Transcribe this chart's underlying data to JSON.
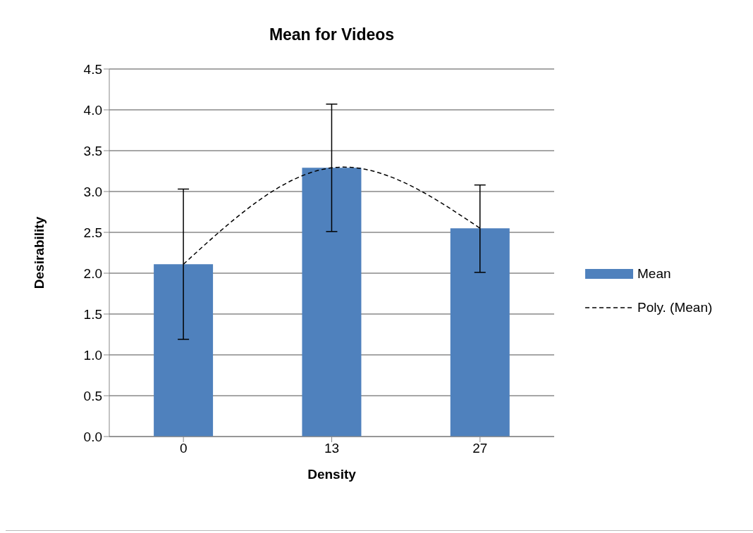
{
  "chart_data": {
    "type": "bar",
    "title": "Mean for Videos",
    "xlabel": "Density",
    "ylabel": "Desirability",
    "categories": [
      "0",
      "13",
      "27"
    ],
    "ylim": [
      0,
      4.5
    ],
    "yticks": [
      {
        "value": 0,
        "label": "0.0"
      },
      {
        "value": 0.5,
        "label": "0.5"
      },
      {
        "value": 1,
        "label": "1.0"
      },
      {
        "value": 1.5,
        "label": "1.5"
      },
      {
        "value": 2,
        "label": "2.0"
      },
      {
        "value": 2.5,
        "label": "2.5"
      },
      {
        "value": 3,
        "label": "3.0"
      },
      {
        "value": 3.5,
        "label": "3.5"
      },
      {
        "value": 4,
        "label": "4.0"
      },
      {
        "value": 4.5,
        "label": "4.5"
      }
    ],
    "grid": "y",
    "legend": "right",
    "series": [
      {
        "name": "Mean",
        "color": "#4f81bd",
        "values": [
          2.11,
          3.29,
          2.55
        ],
        "errors": [
          [
            1.19,
            3.03
          ],
          [
            2.51,
            4.07
          ],
          [
            2.01,
            3.08
          ]
        ]
      },
      {
        "name": "Poly. (Mean)",
        "type": "line",
        "color": "#000000",
        "line_style": "dashed",
        "marker": "none",
        "values": [
          2.11,
          3.29,
          2.55
        ]
      }
    ]
  }
}
